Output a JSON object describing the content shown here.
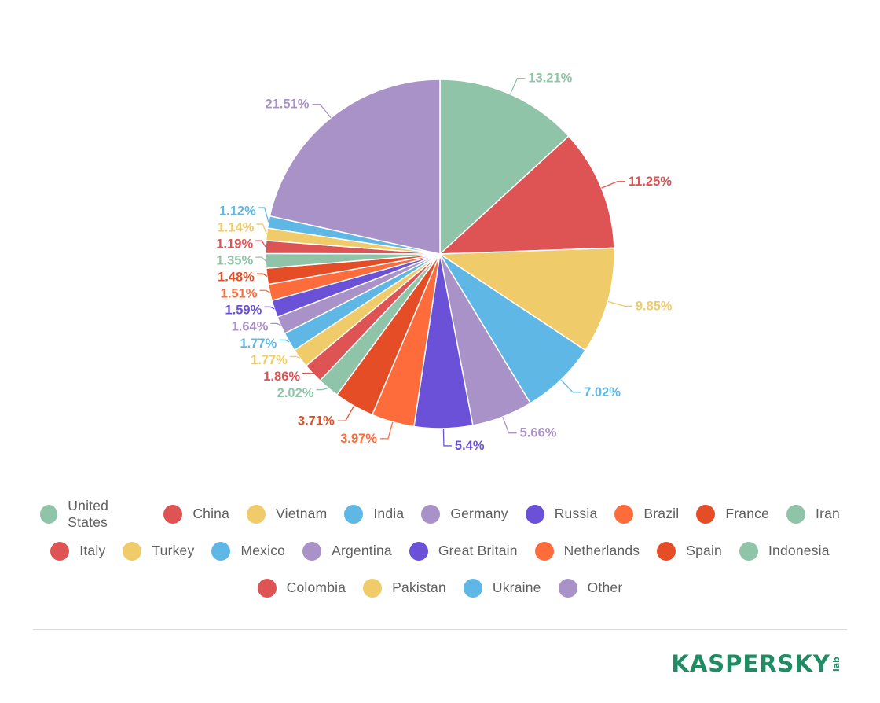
{
  "chart_data": {
    "type": "pie",
    "title": "",
    "categories": [
      "United States",
      "China",
      "Vietnam",
      "India",
      "Germany",
      "Russia",
      "Brazil",
      "France",
      "Iran",
      "Italy",
      "Turkey",
      "Mexico",
      "Argentina",
      "Great Britain",
      "Netherlands",
      "Spain",
      "Indonesia",
      "Colombia",
      "Pakistan",
      "Ukraine",
      "Other"
    ],
    "values": [
      13.21,
      11.25,
      9.85,
      7.02,
      5.66,
      5.4,
      3.97,
      3.71,
      2.02,
      1.86,
      1.77,
      1.77,
      1.64,
      1.59,
      1.51,
      1.48,
      1.35,
      1.19,
      1.14,
      1.12,
      21.51
    ],
    "labels": [
      "13.21%",
      "11.25%",
      "9.85%",
      "7.02%",
      "5.66%",
      "5.4%",
      "3.97%",
      "3.71%",
      "2.02%",
      "1.86%",
      "1.77%",
      "1.77%",
      "1.64%",
      "1.59%",
      "1.51%",
      "1.48%",
      "1.35%",
      "1.19%",
      "1.14%",
      "1.12%",
      "21.51%"
    ],
    "colors": [
      "#8fc4a8",
      "#de5455",
      "#f0cb69",
      "#5eb7e5",
      "#a992c7",
      "#6a51d8",
      "#ff6c3c",
      "#e44d26",
      "#8fc4a8",
      "#de5455",
      "#f0cb69",
      "#5eb7e5",
      "#a992c7",
      "#6a51d8",
      "#ff6c3c",
      "#e44d26",
      "#8fc4a8",
      "#de5455",
      "#f0cb69",
      "#5eb7e5",
      "#a992c7"
    ],
    "legend_position": "bottom"
  },
  "logo": {
    "text": "KASPERSKY",
    "suffix": "lab"
  }
}
